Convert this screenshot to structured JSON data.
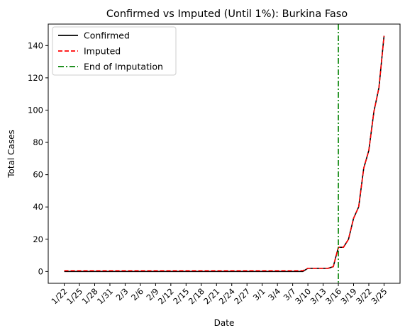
{
  "chart_data": {
    "type": "line",
    "title": "Confirmed vs Imputed (Until 1%): Burkina Faso",
    "xlabel": "Date",
    "ylabel": "Total Cases",
    "x": [
      "1/22",
      "1/23",
      "1/24",
      "1/25",
      "1/26",
      "1/27",
      "1/28",
      "1/29",
      "1/30",
      "1/31",
      "2/1",
      "2/2",
      "2/3",
      "2/4",
      "2/5",
      "2/6",
      "2/7",
      "2/8",
      "2/9",
      "2/10",
      "2/11",
      "2/12",
      "2/13",
      "2/14",
      "2/15",
      "2/16",
      "2/17",
      "2/18",
      "2/19",
      "2/20",
      "2/21",
      "2/22",
      "2/23",
      "2/24",
      "2/25",
      "2/26",
      "2/27",
      "2/28",
      "2/29",
      "3/1",
      "3/2",
      "3/3",
      "3/4",
      "3/5",
      "3/6",
      "3/7",
      "3/8",
      "3/9",
      "3/10",
      "3/11",
      "3/12",
      "3/13",
      "3/14",
      "3/15",
      "3/16",
      "3/17",
      "3/18",
      "3/19",
      "3/20",
      "3/21",
      "3/22",
      "3/23",
      "3/24",
      "3/25"
    ],
    "x_tick_labels": [
      "1/22",
      "1/25",
      "1/28",
      "1/31",
      "2/3",
      "2/6",
      "2/9",
      "2/12",
      "2/15",
      "2/18",
      "2/21",
      "2/24",
      "2/27",
      "3/1",
      "3/4",
      "3/7",
      "3/10",
      "3/13",
      "3/16",
      "3/19",
      "3/22",
      "3/25"
    ],
    "series": [
      {
        "name": "Confirmed",
        "color": "#000000",
        "style": "solid",
        "values": [
          0,
          0,
          0,
          0,
          0,
          0,
          0,
          0,
          0,
          0,
          0,
          0,
          0,
          0,
          0,
          0,
          0,
          0,
          0,
          0,
          0,
          0,
          0,
          0,
          0,
          0,
          0,
          0,
          0,
          0,
          0,
          0,
          0,
          0,
          0,
          0,
          0,
          0,
          0,
          0,
          0,
          0,
          0,
          0,
          0,
          0,
          0,
          0,
          2,
          2,
          2,
          2,
          2,
          3,
          15,
          15,
          20,
          33,
          40,
          64,
          75,
          99,
          114,
          146
        ]
      },
      {
        "name": "Imputed",
        "color": "#ff0000",
        "style": "dashed",
        "values": [
          0.5,
          0.5,
          0.5,
          0.5,
          0.5,
          0.5,
          0.5,
          0.5,
          0.5,
          0.5,
          0.5,
          0.5,
          0.5,
          0.5,
          0.5,
          0.5,
          0.5,
          0.5,
          0.5,
          0.5,
          0.5,
          0.5,
          0.5,
          0.5,
          0.5,
          0.5,
          0.5,
          0.5,
          0.5,
          0.5,
          0.5,
          0.5,
          0.5,
          0.5,
          0.5,
          0.5,
          0.5,
          0.5,
          0.5,
          0.5,
          0.5,
          0.5,
          0.5,
          0.5,
          0.5,
          0.5,
          0.5,
          0.5,
          2,
          2,
          2,
          2,
          2,
          3,
          15,
          15,
          20,
          33,
          40,
          64,
          75,
          99,
          114,
          146
        ]
      }
    ],
    "vline": {
      "name": "End of Imputation",
      "x": "3/16",
      "color": "#008000",
      "style": "dashdot"
    },
    "ylim": [
      -7.3,
      153.3
    ],
    "yticks": [
      0,
      20,
      40,
      60,
      80,
      100,
      120,
      140
    ],
    "grid": false,
    "legend_position": "top-left"
  }
}
